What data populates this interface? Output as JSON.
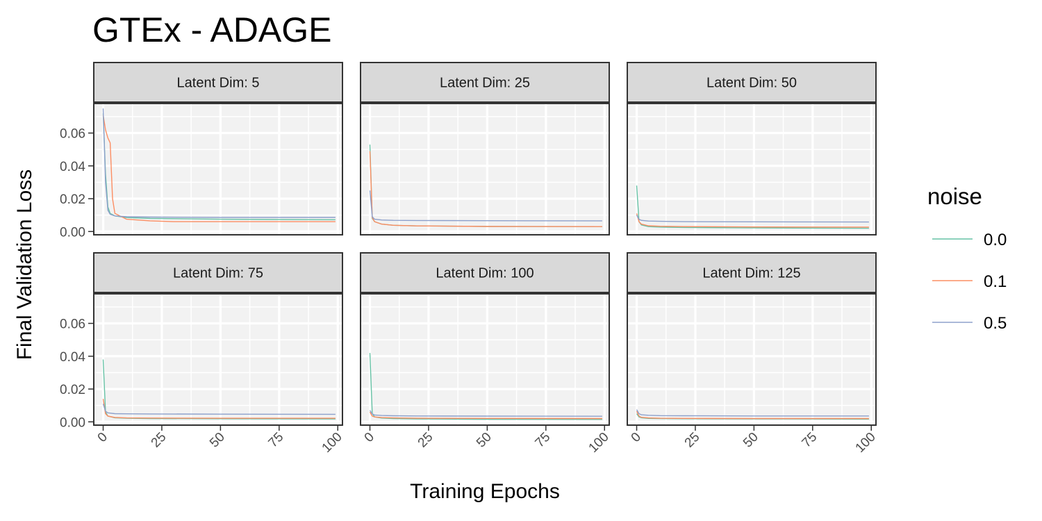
{
  "chart_data": {
    "type": "line",
    "title": "GTEx - ADAGE",
    "xlabel": "Training Epochs",
    "ylabel": "Final Validation Loss",
    "xlim": [
      -4,
      102
    ],
    "ylim": [
      -0.002,
      0.078
    ],
    "x_ticks": [
      0,
      25,
      50,
      75,
      100
    ],
    "x_tick_labels": [
      "0",
      "25",
      "50",
      "75",
      "100"
    ],
    "y_ticks": [
      0.0,
      0.02,
      0.04,
      0.06
    ],
    "y_tick_labels": [
      "0.00",
      "0.02",
      "0.04",
      "0.06"
    ],
    "grid": true,
    "legend": {
      "title": "noise",
      "position": "right",
      "entries": [
        {
          "label": "0.0",
          "color": "#66c2a5"
        },
        {
          "label": "0.1",
          "color": "#fc8d62"
        },
        {
          "label": "0.5",
          "color": "#8da0cb"
        }
      ]
    },
    "panels": [
      {
        "label": "Latent Dim: 5",
        "series": [
          {
            "noise": "0.0",
            "points": [
              [
                0,
                0.072
              ],
              [
                1,
                0.035
              ],
              [
                2,
                0.015
              ],
              [
                3,
                0.011
              ],
              [
                5,
                0.0095
              ],
              [
                10,
                0.0085
              ],
              [
                20,
                0.008
              ],
              [
                50,
                0.0075
              ],
              [
                99,
                0.0072
              ]
            ]
          },
          {
            "noise": "0.1",
            "points": [
              [
                0,
                0.071
              ],
              [
                1,
                0.062
              ],
              [
                2,
                0.057
              ],
              [
                3,
                0.054
              ],
              [
                4,
                0.02
              ],
              [
                5,
                0.011
              ],
              [
                10,
                0.0075
              ],
              [
                20,
                0.0065
              ],
              [
                30,
                0.006
              ],
              [
                99,
                0.006
              ]
            ]
          },
          {
            "noise": "0.5",
            "points": [
              [
                0,
                0.075
              ],
              [
                1,
                0.03
              ],
              [
                2,
                0.013
              ],
              [
                3,
                0.0105
              ],
              [
                5,
                0.0095
              ],
              [
                10,
                0.009
              ],
              [
                20,
                0.0088
              ],
              [
                50,
                0.0086
              ],
              [
                99,
                0.0086
              ]
            ]
          }
        ]
      },
      {
        "label": "Latent Dim: 25",
        "series": [
          {
            "noise": "0.0",
            "points": [
              [
                0,
                0.053
              ],
              [
                1,
                0.008
              ],
              [
                2,
                0.006
              ],
              [
                5,
                0.0045
              ],
              [
                10,
                0.0038
              ],
              [
                20,
                0.0034
              ],
              [
                50,
                0.0031
              ],
              [
                99,
                0.003
              ]
            ]
          },
          {
            "noise": "0.1",
            "points": [
              [
                0,
                0.049
              ],
              [
                1,
                0.0085
              ],
              [
                2,
                0.006
              ],
              [
                5,
                0.0045
              ],
              [
                10,
                0.0038
              ],
              [
                20,
                0.0034
              ],
              [
                50,
                0.0031
              ],
              [
                99,
                0.003
              ]
            ]
          },
          {
            "noise": "0.5",
            "points": [
              [
                0,
                0.025
              ],
              [
                1,
                0.009
              ],
              [
                2,
                0.0075
              ],
              [
                5,
                0.007
              ],
              [
                10,
                0.0068
              ],
              [
                20,
                0.0067
              ],
              [
                50,
                0.0066
              ],
              [
                99,
                0.0065
              ]
            ]
          }
        ]
      },
      {
        "label": "Latent Dim: 50",
        "series": [
          {
            "noise": "0.0",
            "points": [
              [
                0,
                0.028
              ],
              [
                1,
                0.006
              ],
              [
                2,
                0.004
              ],
              [
                5,
                0.003
              ],
              [
                10,
                0.0027
              ],
              [
                20,
                0.0025
              ],
              [
                50,
                0.0022
              ],
              [
                99,
                0.002
              ]
            ]
          },
          {
            "noise": "0.1",
            "points": [
              [
                0,
                0.011
              ],
              [
                1,
                0.006
              ],
              [
                2,
                0.0045
              ],
              [
                5,
                0.0035
              ],
              [
                10,
                0.0032
              ],
              [
                20,
                0.003
              ],
              [
                50,
                0.0028
              ],
              [
                99,
                0.0027
              ]
            ]
          },
          {
            "noise": "0.5",
            "points": [
              [
                0,
                0.01
              ],
              [
                1,
                0.0075
              ],
              [
                2,
                0.0068
              ],
              [
                5,
                0.0064
              ],
              [
                10,
                0.0062
              ],
              [
                20,
                0.006
              ],
              [
                50,
                0.0059
              ],
              [
                99,
                0.0058
              ]
            ]
          }
        ]
      },
      {
        "label": "Latent Dim: 75",
        "series": [
          {
            "noise": "0.0",
            "points": [
              [
                0,
                0.038
              ],
              [
                1,
                0.006
              ],
              [
                2,
                0.0035
              ],
              [
                5,
                0.0025
              ],
              [
                10,
                0.0022
              ],
              [
                20,
                0.002
              ],
              [
                50,
                0.0019
              ],
              [
                99,
                0.0018
              ]
            ]
          },
          {
            "noise": "0.1",
            "points": [
              [
                0,
                0.014
              ],
              [
                1,
                0.005
              ],
              [
                2,
                0.0035
              ],
              [
                5,
                0.0027
              ],
              [
                10,
                0.0024
              ],
              [
                20,
                0.0023
              ],
              [
                50,
                0.0022
              ],
              [
                99,
                0.0022
              ]
            ]
          },
          {
            "noise": "0.5",
            "points": [
              [
                0,
                0.011
              ],
              [
                1,
                0.0065
              ],
              [
                2,
                0.0055
              ],
              [
                5,
                0.005
              ],
              [
                10,
                0.0049
              ],
              [
                20,
                0.0048
              ],
              [
                50,
                0.0047
              ],
              [
                99,
                0.0046
              ]
            ]
          }
        ]
      },
      {
        "label": "Latent Dim: 100",
        "series": [
          {
            "noise": "0.0",
            "points": [
              [
                0,
                0.042
              ],
              [
                1,
                0.005
              ],
              [
                2,
                0.003
              ],
              [
                5,
                0.0023
              ],
              [
                10,
                0.002
              ],
              [
                20,
                0.0018
              ],
              [
                50,
                0.0016
              ],
              [
                99,
                0.0015
              ]
            ]
          },
          {
            "noise": "0.1",
            "points": [
              [
                0,
                0.006
              ],
              [
                1,
                0.0035
              ],
              [
                2,
                0.003
              ],
              [
                5,
                0.0026
              ],
              [
                10,
                0.0024
              ],
              [
                20,
                0.0022
              ],
              [
                50,
                0.0021
              ],
              [
                99,
                0.002
              ]
            ]
          },
          {
            "noise": "0.5",
            "points": [
              [
                0,
                0.007
              ],
              [
                1,
                0.0048
              ],
              [
                2,
                0.0042
              ],
              [
                5,
                0.0039
              ],
              [
                10,
                0.0037
              ],
              [
                20,
                0.0036
              ],
              [
                50,
                0.0035
              ],
              [
                99,
                0.0034
              ]
            ]
          }
        ]
      },
      {
        "label": "Latent Dim: 125",
        "series": [
          {
            "noise": "0.0",
            "points": [
              [
                0,
                0.005
              ],
              [
                1,
                0.003
              ],
              [
                2,
                0.0025
              ],
              [
                5,
                0.0021
              ],
              [
                10,
                0.002
              ],
              [
                20,
                0.0019
              ],
              [
                50,
                0.0018
              ],
              [
                99,
                0.0017
              ]
            ]
          },
          {
            "noise": "0.1",
            "points": [
              [
                0,
                0.0065
              ],
              [
                1,
                0.0035
              ],
              [
                2,
                0.0028
              ],
              [
                5,
                0.0024
              ],
              [
                10,
                0.0022
              ],
              [
                20,
                0.0021
              ],
              [
                50,
                0.002
              ],
              [
                99,
                0.002
              ]
            ]
          },
          {
            "noise": "0.5",
            "points": [
              [
                0,
                0.0075
              ],
              [
                1,
                0.005
              ],
              [
                2,
                0.0043
              ],
              [
                5,
                0.004
              ],
              [
                10,
                0.0038
              ],
              [
                20,
                0.0037
              ],
              [
                50,
                0.0036
              ],
              [
                99,
                0.0036
              ]
            ]
          }
        ]
      }
    ]
  }
}
